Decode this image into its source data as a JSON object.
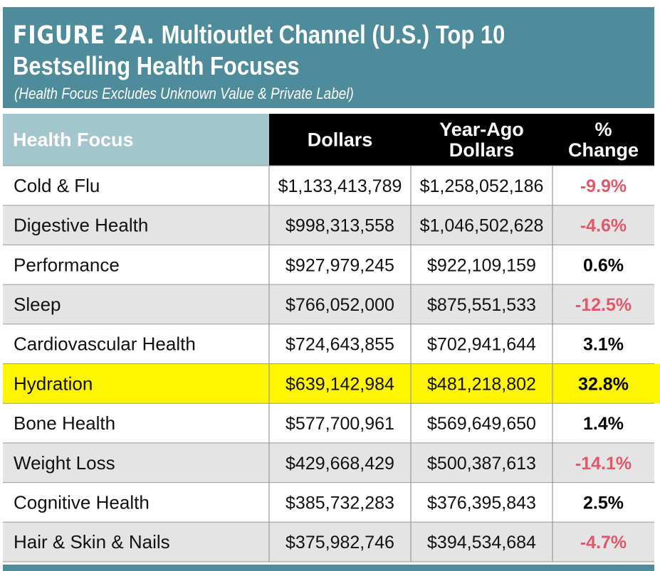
{
  "figure": {
    "label": "FIGURE 2A.",
    "title_line1": "Multioutlet Channel (U.S.) Top 10",
    "title_line2": "Bestselling Health Focuses",
    "subtitle": "(Health Focus Excludes Unknown Value & Private Label)"
  },
  "colors": {
    "title_bg": "#4e8c9b",
    "header_first_bg": "#a3c5cd",
    "header_bg": "#000000",
    "stripe_bg": "#e4e4e4",
    "highlight_bg": "#fff500",
    "negative": "#e0586a",
    "positive": "#000000",
    "border": "#999999"
  },
  "chart_data": {
    "type": "table",
    "title": "Multioutlet Channel (U.S.) Top 10 Bestselling Health Focuses",
    "subtitle": "(Health Focus Excludes Unknown Value & Private Label)",
    "columns": [
      {
        "label": "Health Focus",
        "lines": [
          "Health Focus"
        ]
      },
      {
        "label": "Dollars",
        "lines": [
          "Dollars"
        ]
      },
      {
        "label": "Year-Ago Dollars",
        "lines": [
          "Year-Ago",
          "Dollars"
        ]
      },
      {
        "label": "% Change",
        "lines": [
          "%",
          "Change"
        ]
      }
    ],
    "rows": [
      {
        "focus": "Cold & Flu",
        "dollars": "$1,133,413,789",
        "year_ago": "$1,258,052,186",
        "change": "-9.9%",
        "change_value": -9.9,
        "highlight": false
      },
      {
        "focus": "Digestive Health",
        "dollars": "$998,313,558",
        "year_ago": "$1,046,502,628",
        "change": "-4.6%",
        "change_value": -4.6,
        "highlight": false
      },
      {
        "focus": "Performance",
        "dollars": "$927,979,245",
        "year_ago": "$922,109,159",
        "change": "0.6%",
        "change_value": 0.6,
        "highlight": false
      },
      {
        "focus": "Sleep",
        "dollars": "$766,052,000",
        "year_ago": "$875,551,533",
        "change": "-12.5%",
        "change_value": -12.5,
        "highlight": false
      },
      {
        "focus": "Cardiovascular Health",
        "dollars": "$724,643,855",
        "year_ago": "$702,941,644",
        "change": "3.1%",
        "change_value": 3.1,
        "highlight": false
      },
      {
        "focus": "Hydration",
        "dollars": "$639,142,984",
        "year_ago": "$481,218,802",
        "change": "32.8%",
        "change_value": 32.8,
        "highlight": true
      },
      {
        "focus": "Bone Health",
        "dollars": "$577,700,961",
        "year_ago": "$569,649,650",
        "change": "1.4%",
        "change_value": 1.4,
        "highlight": false
      },
      {
        "focus": "Weight Loss",
        "dollars": "$429,668,429",
        "year_ago": "$500,387,613",
        "change": "-14.1%",
        "change_value": -14.1,
        "highlight": false
      },
      {
        "focus": "Cognitive Health",
        "dollars": "$385,732,283",
        "year_ago": "$376,395,843",
        "change": "2.5%",
        "change_value": 2.5,
        "highlight": false
      },
      {
        "focus": "Hair & Skin & Nails",
        "dollars": "$375,982,746",
        "year_ago": "$394,534,684",
        "change": "-4.7%",
        "change_value": -4.7,
        "highlight": false
      }
    ]
  }
}
